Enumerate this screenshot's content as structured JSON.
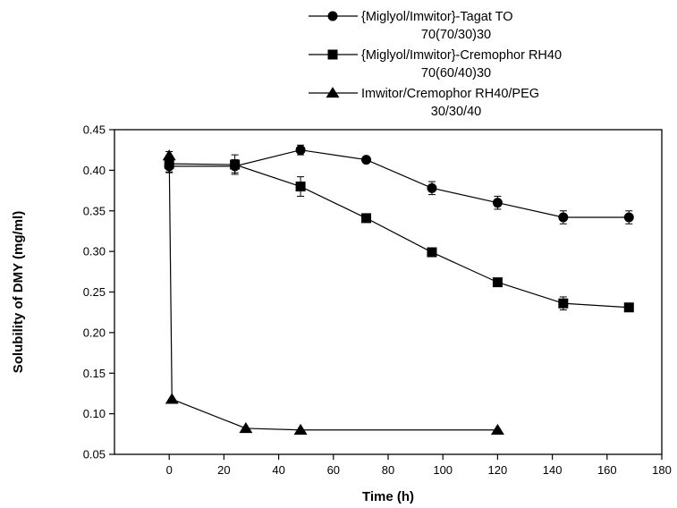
{
  "chart_data": {
    "type": "line",
    "title": "",
    "xlabel": "Time (h)",
    "ylabel": "Solubility of DMY (mg/ml)",
    "xlim": [
      -20,
      180
    ],
    "ylim": [
      0.05,
      0.45
    ],
    "xticks": [
      0,
      20,
      40,
      60,
      80,
      100,
      120,
      140,
      160,
      180
    ],
    "yticks": [
      0.05,
      0.1,
      0.15,
      0.2,
      0.25,
      0.3,
      0.35,
      0.4,
      0.45
    ],
    "ytick_labels": [
      "0.05",
      "0.10",
      "0.15",
      "0.20",
      "0.25",
      "0.30",
      "0.35",
      "0.40",
      "0.45"
    ],
    "grid": false,
    "legend_position": "top-right, above plot",
    "series": [
      {
        "name_lines": [
          "{Miglyol/Imwitor}-Tagat TO",
          "70(70/30)30"
        ],
        "marker": "circle",
        "x": [
          0,
          24,
          48,
          72,
          96,
          120,
          144,
          168
        ],
        "y": [
          0.405,
          0.405,
          0.425,
          0.413,
          0.378,
          0.36,
          0.342,
          0.342
        ],
        "err": [
          0.008,
          0.008,
          0.006,
          0.003,
          0.008,
          0.008,
          0.008,
          0.008
        ]
      },
      {
        "name_lines": [
          "{Miglyol/Imwitor}-Cremophor RH40",
          "70(60/40)30"
        ],
        "marker": "square",
        "x": [
          0,
          24,
          48,
          72,
          96,
          120,
          144,
          168
        ],
        "y": [
          0.408,
          0.407,
          0.38,
          0.341,
          0.299,
          0.262,
          0.236,
          0.231
        ],
        "err": [
          0.01,
          0.012,
          0.012,
          0.005,
          0.003,
          0.004,
          0.008,
          0.005
        ]
      },
      {
        "name_lines": [
          "Imwitor/Cremophor RH40/PEG",
          "30/30/40"
        ],
        "marker": "triangle",
        "x": [
          0,
          1,
          28,
          48,
          120
        ],
        "y": [
          0.418,
          0.118,
          0.082,
          0.08,
          0.08
        ],
        "err": [
          0.005,
          0,
          0,
          0,
          0
        ]
      }
    ]
  }
}
